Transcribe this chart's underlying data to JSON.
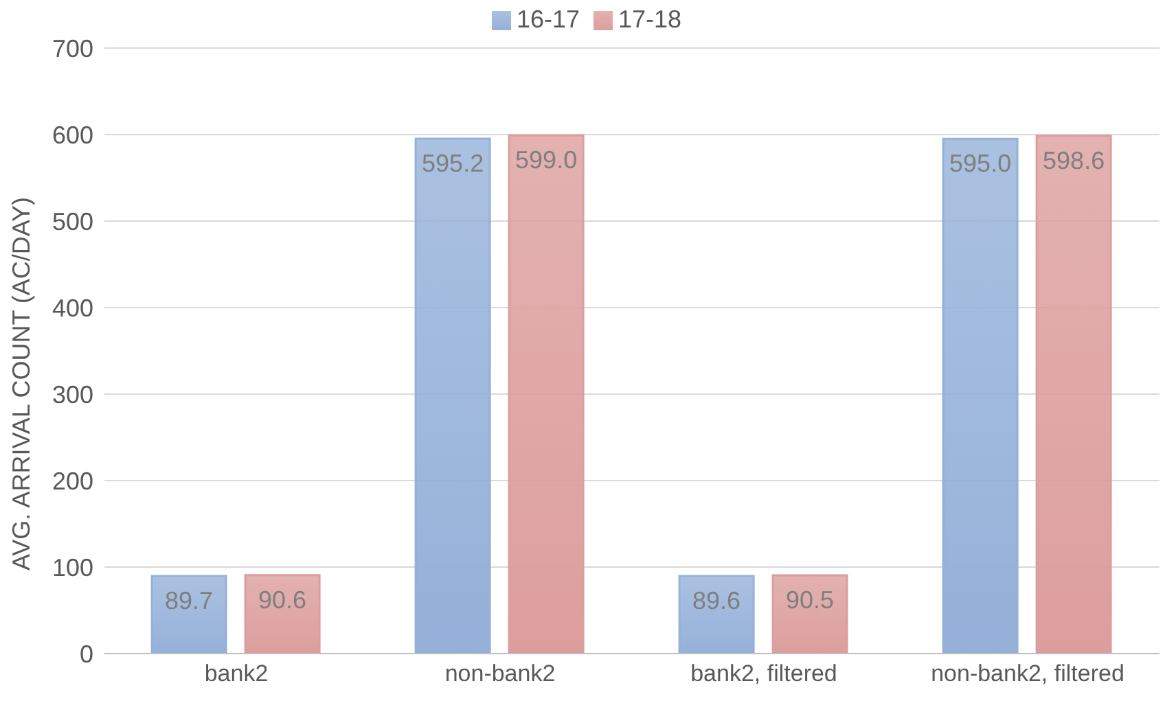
{
  "chart_data": {
    "type": "bar",
    "ylabel": "AVG. ARRIVAL COUNT (AC/DAY)",
    "categories": [
      "bank2",
      "non-bank2",
      "bank2, filtered",
      "non-bank2, filtered"
    ],
    "series": [
      {
        "name": "16-17",
        "color": "#95b1d9",
        "values": [
          89.7,
          595.2,
          89.6,
          595.0
        ],
        "value_labels": [
          "89.7",
          "595.2",
          "89.6",
          "595.0"
        ]
      },
      {
        "name": "17-18",
        "color": "#dc9e9d",
        "values": [
          90.6,
          599.0,
          90.5,
          598.6
        ],
        "value_labels": [
          "90.6",
          "599.0",
          "90.5",
          "598.6"
        ]
      }
    ],
    "ylim": [
      0,
      700
    ],
    "yticks": [
      0,
      100,
      200,
      300,
      400,
      500,
      600,
      700
    ],
    "grid": "y",
    "legend": "top"
  }
}
